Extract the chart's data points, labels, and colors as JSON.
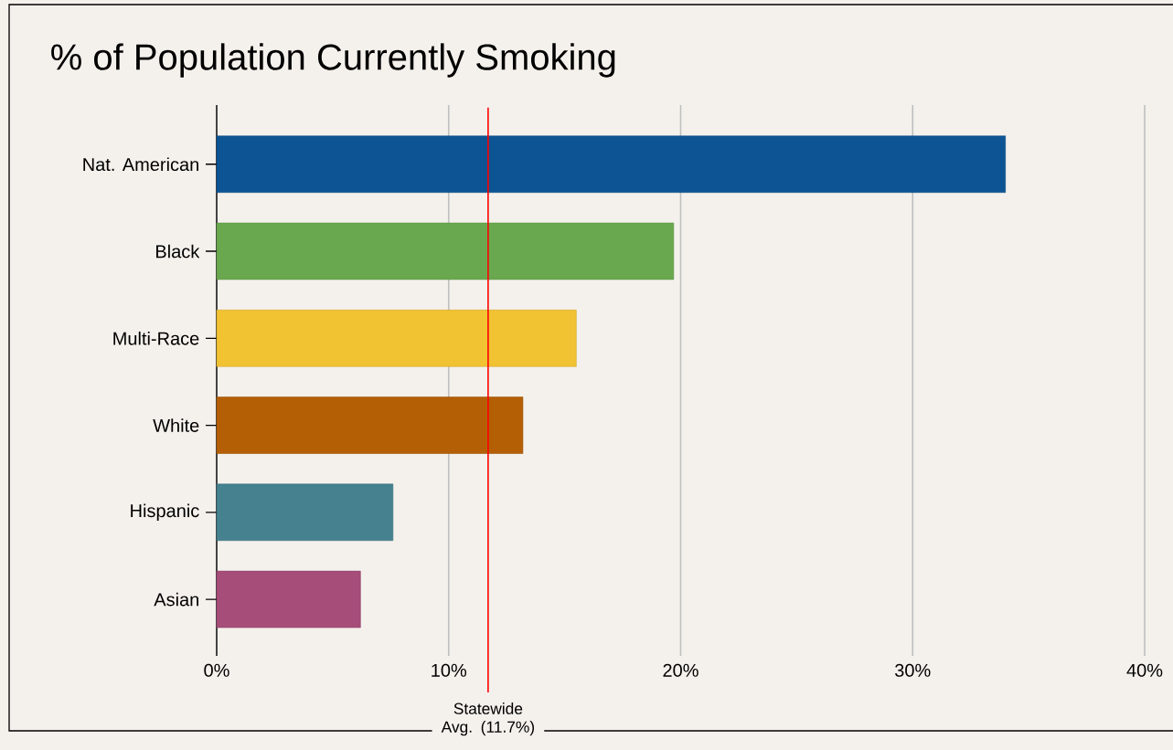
{
  "chart_data": {
    "type": "bar",
    "orientation": "horizontal",
    "title": "% of Population Currently Smoking",
    "categories": [
      "Nat. American",
      "Black",
      "Multi-Race",
      "White",
      "Hispanic",
      "Asian"
    ],
    "values": [
      34.0,
      19.7,
      15.5,
      13.2,
      7.6,
      6.2
    ],
    "colors": [
      "#0d5494",
      "#6aa84f",
      "#f1c232",
      "#b45f06",
      "#45818e",
      "#a64d79"
    ],
    "xlim": [
      0,
      40
    ],
    "xticks": [
      {
        "value": 0,
        "label": "0%"
      },
      {
        "value": 10,
        "label": "10%"
      },
      {
        "value": 20,
        "label": "20%"
      },
      {
        "value": 30,
        "label": "30%"
      },
      {
        "value": 40,
        "label": "40%"
      }
    ],
    "grid": "x",
    "ref_lines": [
      {
        "axis": "x",
        "value": 11.7,
        "label": "Statewide Avg. (11.7%)",
        "color": "#ff0000"
      }
    ]
  }
}
